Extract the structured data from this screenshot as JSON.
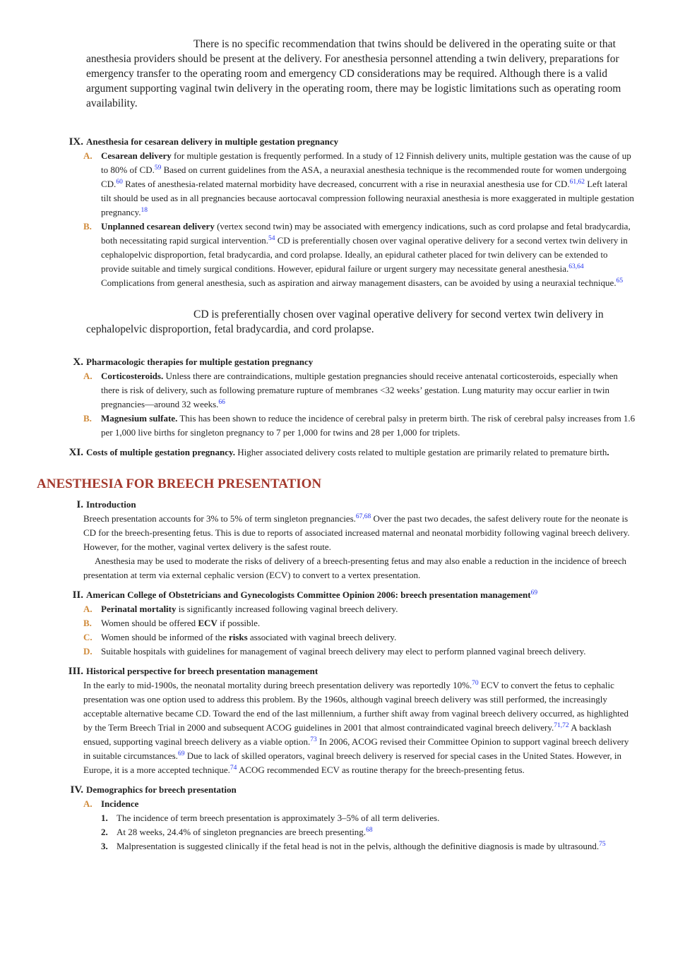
{
  "quote_1": "There is no specific recommendation that twins should be delivered in the operating suite or that anesthesia providers should be present at the delivery. For anesthesia personnel attending a twin delivery, preparations for emergency transfer to the operating room and emergency CD considerations may be required. Although there is a valid argument supporting vaginal twin delivery in the operating room, there may be logistic limitations such as operating room availability.",
  "section_ix": {
    "number": "IX.",
    "title": "Anesthesia for cesarean delivery in multiple gestation pregnancy",
    "items": [
      {
        "letter": "A.",
        "runs": [
          "Cesarean delivery",
          " for multiple gestation is frequently performed. In a study of 12 Finnish delivery units, multiple gestation was the cause of up to 80% of CD.",
          "59",
          " Based on current guidelines from the ASA, a neuraxial anesthesia technique is the recommended route for women undergoing CD.",
          "60",
          " Rates of anesthesia-related maternal morbidity have decreased, concurrent with a rise in neuraxial anesthesia use for CD.",
          "61,62",
          " Left lateral tilt should be used as in all pregnancies because aortocaval compression following neuraxial anesthesia is more exaggerated in multiple gestation pregnancy.",
          "18"
        ]
      },
      {
        "letter": "B.",
        "runs": [
          "Unplanned cesarean delivery",
          " (vertex second twin) may be associated with emergency indications, such as cord prolapse and fetal bradycardia, both necessitating rapid surgical intervention.",
          "54",
          " CD is preferentially chosen over vaginal operative delivery for a second vertex twin delivery in cephalopelvic disproportion, fetal bradycardia, and cord prolapse. Ideally, an epidural catheter placed for twin delivery can be extended to provide suitable and timely surgical conditions. However, epidural failure or urgent surgery may necessitate general anesthesia.",
          "63,64",
          " Complications from general anesthesia, such as aspiration and airway management disasters, can be avoided by using a neuraxial technique.",
          "65"
        ]
      }
    ]
  },
  "quote_2": "CD is preferentially chosen over vaginal operative delivery for second vertex twin delivery in cephalopelvic disproportion, fetal bradycardia, and cord prolapse.",
  "section_x": {
    "number": "X.",
    "title": "Pharmacologic therapies for multiple gestation pregnancy",
    "items": [
      {
        "letter": "A.",
        "runs": [
          "Corticosteroids.",
          " Unless there are contraindications, multiple gestation pregnancies should receive antenatal corticosteroids, especially when there is risk of delivery, such as following premature rupture of membranes <32 weeks’ gestation. Lung maturity may occur earlier in twin pregnancies—around 32 weeks.",
          "66"
        ]
      },
      {
        "letter": "B.",
        "runs": [
          "Magnesium sulfate.",
          " This has been shown to reduce the incidence of cerebral palsy in preterm birth. The risk of cerebral palsy increases from 1.6 per 1,000 live births for singleton pregnancy to 7 per 1,000 for twins and 28 per 1,000 for triplets."
        ]
      }
    ]
  },
  "section_xi": {
    "number": "XI.",
    "runs": [
      "Costs of multiple gestation pregnancy.",
      " Higher associated delivery costs related to multiple gestation are primarily related to premature birth",
      "."
    ]
  },
  "breech_heading": "ANESTHESIA FOR BREECH PRESENTATION",
  "breech_i": {
    "number": "I.",
    "title": "Introduction",
    "paragraph_1": [
      "Breech presentation accounts for 3% to 5% of term singleton pregnancies.",
      "67,68",
      " Over the past two decades, the safest delivery route for the neonate is CD for the breech-presenting fetus. This is due to reports of associated increased maternal and neonatal morbidity following vaginal breech delivery. However, for the mother, vaginal vertex delivery is the safest route."
    ],
    "paragraph_2": "Anesthesia may be used to moderate the risks of delivery of a breech-presenting fetus and may also enable a reduction in the incidence of breech presentation at term via external cephalic version (ECV) to convert to a vertex presentation."
  },
  "breech_ii": {
    "number": "II.",
    "title": [
      "American College of Obstetricians and Gynecologists Committee Opinion 2006: breech presentation management",
      "69"
    ],
    "items": [
      {
        "letter": "A.",
        "runs": [
          "Perinatal mortality",
          " is significantly increased following vaginal breech delivery."
        ]
      },
      {
        "letter": "B.",
        "runs": [
          "Women should be offered ",
          "ECV",
          " if possible."
        ]
      },
      {
        "letter": "C.",
        "runs": [
          "Women should be informed of the ",
          "risks",
          " associated with vaginal breech delivery."
        ]
      },
      {
        "letter": "D.",
        "text": "Suitable hospitals with guidelines for management of vaginal breech delivery may elect to perform planned vaginal breech delivery."
      }
    ]
  },
  "breech_iii": {
    "number": "III.",
    "title": "Historical perspective for breech presentation management",
    "runs": [
      "In the early to mid-1900s, the neonatal mortality during breech presentation delivery was reportedly 10%.",
      "70",
      " ECV to convert the fetus to cephalic presentation was one option used to address this problem. By the 1960s, although vaginal breech delivery was still performed, the increasingly acceptable alternative became CD. Toward the end of the last millennium, a further shift away from vaginal breech delivery occurred, as highlighted by the Term Breech Trial in 2000 and subsequent ACOG guidelines in 2001 that almost contraindicated vaginal breech delivery.",
      "71,72",
      " A backlash ensued, supporting vaginal breech delivery as a viable option.",
      "73",
      " In 2006, ACOG revised their Committee Opinion to support vaginal breech delivery in suitable circumstances.",
      "69",
      " Due to lack of skilled operators, vaginal breech delivery is reserved for special cases in the United States. However, in Europe, it is a more accepted technique.",
      "74",
      " ACOG recommended ECV as routine therapy for the breech-presenting fetus."
    ]
  },
  "breech_iv": {
    "number": "IV.",
    "title": "Demographics for breech presentation",
    "items": [
      {
        "letter": "A.",
        "title": "Incidence",
        "points": [
          {
            "number": "1.",
            "text": "The incidence of term breech presentation is approximately 3–5% of all term deliveries."
          },
          {
            "number": "2.",
            "runs": [
              "At 28 weeks, 24.4% of singleton pregnancies are breech presenting.",
              "68"
            ]
          },
          {
            "number": "3.",
            "runs": [
              "Malpresentation is suggested clinically if the fetal head is not in the pelvis, although the definitive diagnosis is made by ultrasound.",
              "75"
            ]
          }
        ]
      }
    ]
  }
}
